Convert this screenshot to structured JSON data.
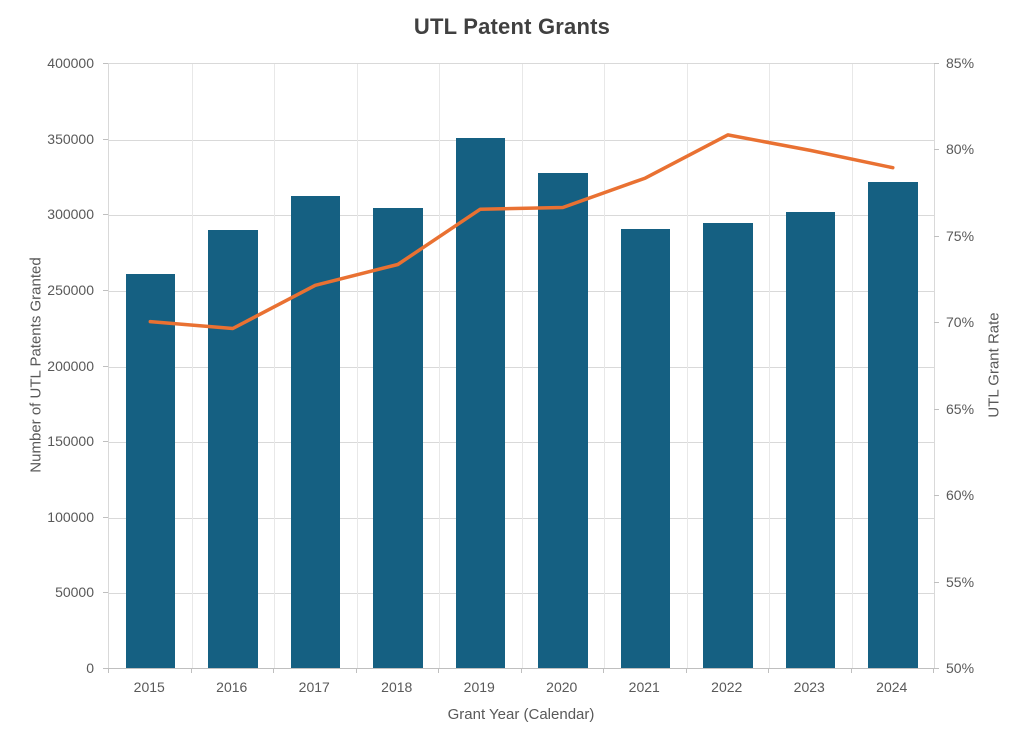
{
  "chart_data": {
    "type": "combo-bar-line",
    "title": "UTL Patent Grants",
    "xlabel": "Grant Year (Calendar)",
    "ylabel_left": "Number of UTL Patents Granted",
    "ylabel_right": "UTL Grant Rate",
    "categories": [
      "2015",
      "2016",
      "2017",
      "2018",
      "2019",
      "2020",
      "2021",
      "2022",
      "2023",
      "2024"
    ],
    "series": [
      {
        "name": "Number of UTL Patents Granted",
        "type": "bar",
        "axis": "left",
        "color": "#156082",
        "values": [
          261000,
          290000,
          313000,
          305000,
          351000,
          328000,
          291000,
          295000,
          302000,
          322000
        ]
      },
      {
        "name": "UTL Grant Rate",
        "type": "line",
        "axis": "right",
        "color": "#E97132",
        "values": [
          70.1,
          69.7,
          72.2,
          73.4,
          76.6,
          76.7,
          78.4,
          80.9,
          80.0,
          79.0
        ]
      }
    ],
    "left_axis": {
      "min": 0,
      "max": 400000,
      "tick_step": 50000,
      "tick_labels": [
        "0",
        "50000",
        "100000",
        "150000",
        "200000",
        "250000",
        "300000",
        "350000",
        "400000"
      ]
    },
    "right_axis": {
      "min": 50,
      "max": 85,
      "tick_step": 5,
      "tick_labels": [
        "50%",
        "55%",
        "60%",
        "65%",
        "70%",
        "75%",
        "80%",
        "85%"
      ]
    },
    "grid": true,
    "legend": "none",
    "colors": {
      "bar": "#156082",
      "line": "#E97132",
      "gridline": "#D9D9D9",
      "axis_line": "#BFBFBF",
      "tick_text": "#595959",
      "title_text": "#404040",
      "background": "#FFFFFF"
    }
  }
}
